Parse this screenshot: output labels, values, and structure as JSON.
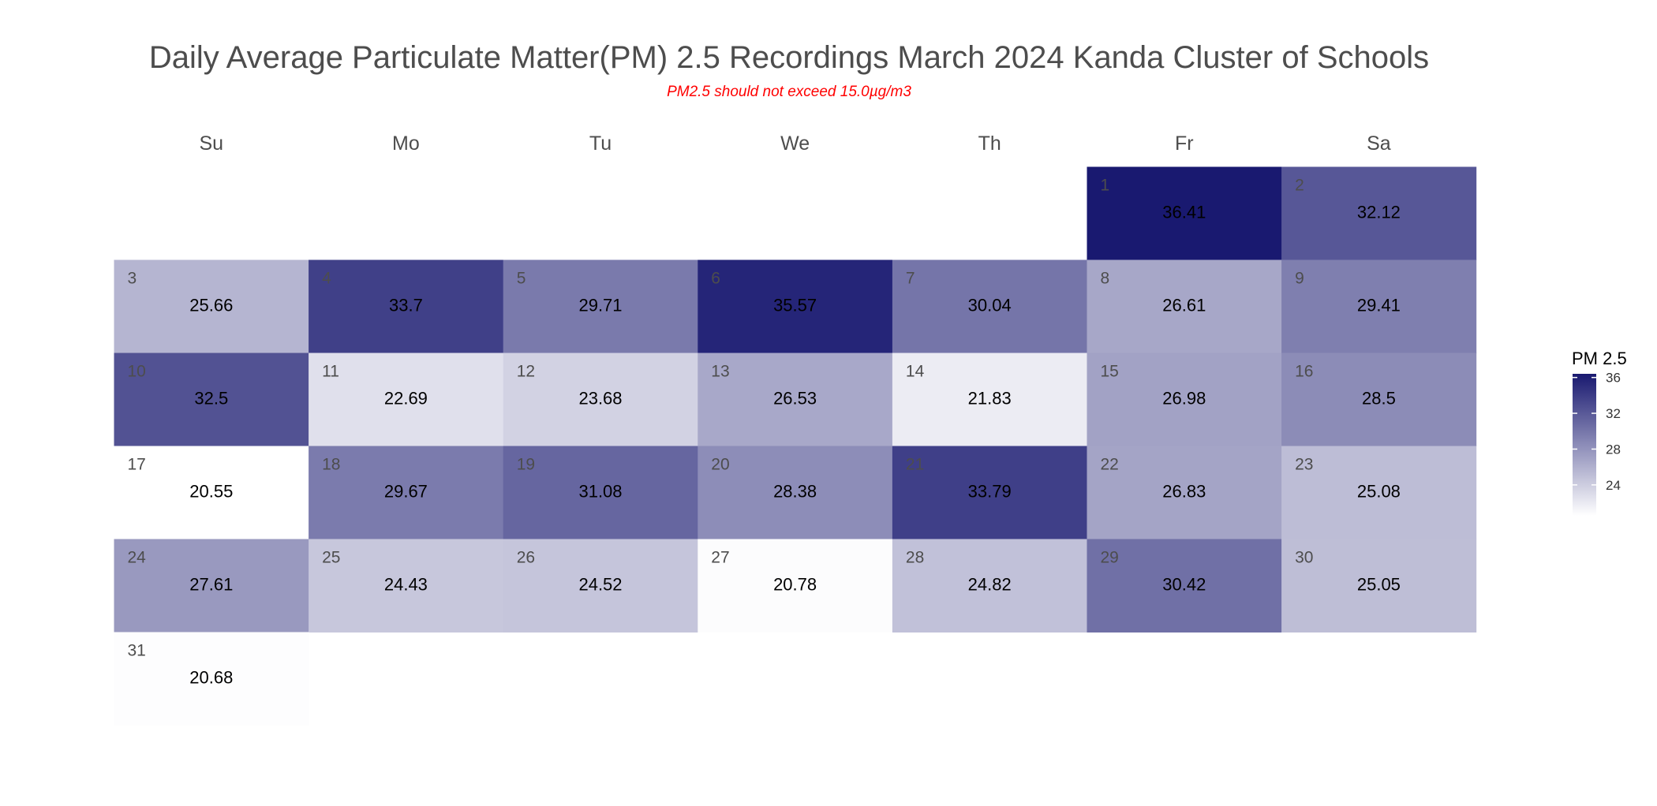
{
  "chart_data": {
    "type": "heatmap",
    "title": "Daily Average Particulate Matter(PM) 2.5 Recordings March 2024 Kanda Cluster of Schools",
    "subtitle": "PM2.5 should not exceed 15.0µg/m3",
    "weekdays": [
      "Su",
      "Mo",
      "Tu",
      "We",
      "Th",
      "Fr",
      "Sa"
    ],
    "first_weekday_index": 5,
    "days": [
      1,
      2,
      3,
      4,
      5,
      6,
      7,
      8,
      9,
      10,
      11,
      12,
      13,
      14,
      15,
      16,
      17,
      18,
      19,
      20,
      21,
      22,
      23,
      24,
      25,
      26,
      27,
      28,
      29,
      30,
      31
    ],
    "value_labels": [
      "36.41",
      "32.12",
      "25.66",
      "33.7",
      "29.71",
      "35.57",
      "30.04",
      "26.61",
      "29.41",
      "32.5",
      "22.69",
      "23.68",
      "26.53",
      "21.83",
      "26.98",
      "28.5",
      "20.55",
      "29.67",
      "31.08",
      "28.38",
      "33.79",
      "26.83",
      "25.08",
      "27.61",
      "24.43",
      "24.52",
      "20.78",
      "24.82",
      "30.42",
      "25.05",
      "20.68"
    ],
    "values": [
      36.41,
      32.12,
      25.66,
      33.7,
      29.71,
      35.57,
      30.04,
      26.61,
      29.41,
      32.5,
      22.69,
      23.68,
      26.53,
      21.83,
      26.98,
      28.5,
      20.55,
      29.67,
      31.08,
      28.38,
      33.79,
      26.83,
      25.08,
      27.61,
      24.43,
      24.52,
      20.78,
      24.82,
      30.42,
      25.05,
      20.68
    ],
    "legend": {
      "title": "PM 2.5",
      "ticks": [
        24,
        28,
        32,
        36
      ],
      "tick_labels": [
        "24",
        "28",
        "32",
        "36"
      ],
      "position": "right"
    },
    "color_scale": {
      "min": 20.55,
      "max": 36.41,
      "low_color": "#ffffff",
      "high_color": "#191970"
    },
    "colors": {
      "title": "#4d4d4d",
      "subtitle": "#ff0000",
      "weekday": "#4d4d4d",
      "day_number": "#4d4d4d",
      "value": "#000000"
    }
  }
}
